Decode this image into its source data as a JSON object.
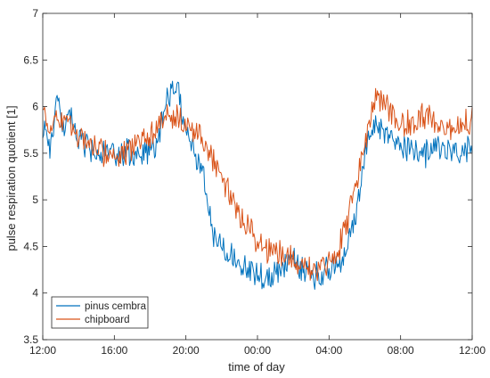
{
  "chart_data": {
    "type": "line",
    "title": "",
    "xlabel": "time of day",
    "ylabel": "pulse respiration quotient [1]",
    "xtick_labels": [
      "12:00",
      "16:00",
      "20:00",
      "00:00",
      "04:00",
      "08:00",
      "12:00"
    ],
    "xtick_hours": [
      0,
      4,
      8,
      12,
      16,
      20,
      24
    ],
    "xlim_hours": [
      0,
      24
    ],
    "ylim": [
      3.5,
      7
    ],
    "yticks": [
      3.5,
      4,
      4.5,
      5,
      5.5,
      6,
      6.5,
      7
    ],
    "grid": false,
    "legend_position": "bottom-left",
    "series": [
      {
        "name": "pinus cembra",
        "color": "#0072BD",
        "keypoints": [
          [
            0,
            5.8
          ],
          [
            0.4,
            5.6
          ],
          [
            0.8,
            6.0
          ],
          [
            1.2,
            5.8
          ],
          [
            1.6,
            5.85
          ],
          [
            2,
            5.65
          ],
          [
            2.5,
            5.55
          ],
          [
            3,
            5.5
          ],
          [
            3.5,
            5.5
          ],
          [
            4,
            5.45
          ],
          [
            4.5,
            5.5
          ],
          [
            5,
            5.5
          ],
          [
            5.5,
            5.45
          ],
          [
            6,
            5.5
          ],
          [
            6.5,
            5.7
          ],
          [
            7,
            6.15
          ],
          [
            7.5,
            6.2
          ],
          [
            8,
            5.75
          ],
          [
            8.5,
            5.5
          ],
          [
            9,
            5.25
          ],
          [
            9.3,
            4.85
          ],
          [
            9.6,
            4.6
          ],
          [
            10,
            4.5
          ],
          [
            10.5,
            4.45
          ],
          [
            11,
            4.3
          ],
          [
            11.5,
            4.25
          ],
          [
            12,
            4.2
          ],
          [
            12.5,
            4.15
          ],
          [
            13,
            4.2
          ],
          [
            13.5,
            4.3
          ],
          [
            14,
            4.35
          ],
          [
            14.5,
            4.25
          ],
          [
            15,
            4.2
          ],
          [
            15.5,
            4.2
          ],
          [
            16,
            4.25
          ],
          [
            16.5,
            4.3
          ],
          [
            17,
            4.45
          ],
          [
            17.5,
            4.85
          ],
          [
            18,
            5.5
          ],
          [
            18.5,
            5.85
          ],
          [
            19,
            5.75
          ],
          [
            19.5,
            5.65
          ],
          [
            20,
            5.6
          ],
          [
            20.5,
            5.55
          ],
          [
            21,
            5.5
          ],
          [
            21.5,
            5.5
          ],
          [
            22,
            5.6
          ],
          [
            22.5,
            5.55
          ],
          [
            23,
            5.45
          ],
          [
            23.5,
            5.55
          ],
          [
            24,
            5.55
          ]
        ]
      },
      {
        "name": "chipboard",
        "color": "#D95319",
        "keypoints": [
          [
            0,
            6.0
          ],
          [
            0.4,
            5.75
          ],
          [
            0.8,
            5.9
          ],
          [
            1.2,
            5.85
          ],
          [
            1.6,
            5.75
          ],
          [
            2,
            5.7
          ],
          [
            2.5,
            5.6
          ],
          [
            3,
            5.55
          ],
          [
            3.5,
            5.5
          ],
          [
            4,
            5.45
          ],
          [
            4.5,
            5.5
          ],
          [
            5,
            5.55
          ],
          [
            5.5,
            5.6
          ],
          [
            6,
            5.7
          ],
          [
            6.5,
            5.85
          ],
          [
            7,
            5.95
          ],
          [
            7.5,
            5.9
          ],
          [
            8,
            5.8
          ],
          [
            8.5,
            5.75
          ],
          [
            9,
            5.65
          ],
          [
            9.5,
            5.45
          ],
          [
            10,
            5.25
          ],
          [
            10.5,
            5.05
          ],
          [
            11,
            4.85
          ],
          [
            11.5,
            4.75
          ],
          [
            12,
            4.55
          ],
          [
            12.5,
            4.45
          ],
          [
            13,
            4.45
          ],
          [
            13.5,
            4.4
          ],
          [
            14,
            4.35
          ],
          [
            14.5,
            4.3
          ],
          [
            15,
            4.25
          ],
          [
            15.5,
            4.25
          ],
          [
            16,
            4.3
          ],
          [
            16.5,
            4.45
          ],
          [
            17,
            4.75
          ],
          [
            17.5,
            5.15
          ],
          [
            18,
            5.6
          ],
          [
            18.5,
            6.1
          ],
          [
            19,
            6.05
          ],
          [
            19.5,
            5.9
          ],
          [
            20,
            5.8
          ],
          [
            20.5,
            5.8
          ],
          [
            21,
            5.85
          ],
          [
            21.5,
            5.9
          ],
          [
            22,
            5.85
          ],
          [
            22.5,
            5.8
          ],
          [
            23,
            5.75
          ],
          [
            23.5,
            5.8
          ],
          [
            24,
            5.9
          ]
        ]
      }
    ]
  }
}
